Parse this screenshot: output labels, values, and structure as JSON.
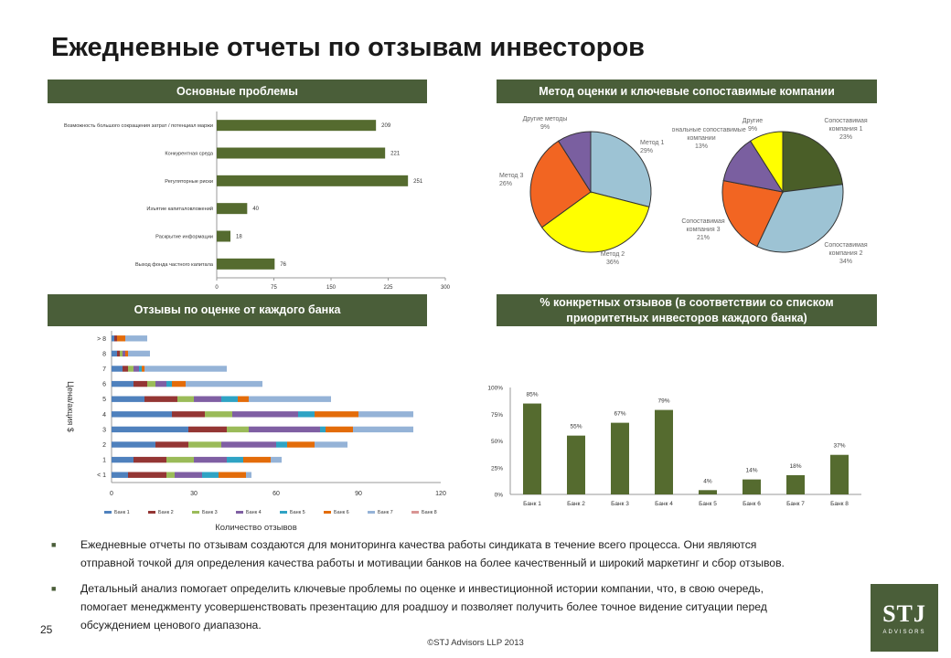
{
  "page": {
    "title": "Ежедневные отчеты по отзывам инвесторов",
    "page_number": "25",
    "copyright": "©STJ Advisors LLP 2013",
    "logo_text": "STJ",
    "logo_sub": "ADVISORS",
    "colors": {
      "accent": "#4a5e39",
      "bar": "#556b2f"
    }
  },
  "banners": {
    "problems": "Основные проблемы",
    "valuation": "Метод оценки и ключевые сопоставимые компании",
    "feedback": "Отзывы по оценке от каждого банка",
    "specific_line1": "% конкретных отзывов (в соответствии со списком",
    "specific_line2": "приоритетных инвесторов каждого банка)"
  },
  "bullets": [
    {
      "line1": "Ежедневные отчеты по отзывам создаются для мониторинга качества работы синдиката в течение всего процесса. Они являются",
      "line2": "отправной точкой для определения качества работы и мотивации банков на более качественный и широкий маркетинг и сбор отзывов."
    },
    {
      "line1": "Детальный анализ помогает определить ключевые проблемы по оценке и инвестиционной истории компании, что, в свою очередь,",
      "line2": "помогает менеджменту усовершенствовать презентацию для роадшоу и позволяет получить более точное видение ситуации перед",
      "line3": "обсуждением ценового диапазона."
    }
  ],
  "chart_data": [
    {
      "id": "problems",
      "type": "bar",
      "orientation": "horizontal",
      "categories": [
        "Возможность большого сокращения затрат / потенциал маржи",
        "Конкурентная среда",
        "Регуляторные риски",
        "Изъятие капиталовложений",
        "Раскрытие информации",
        "Выход фонда частного капитала"
      ],
      "values": [
        209,
        221,
        251,
        40,
        18,
        76
      ],
      "xlim": [
        0,
        300
      ],
      "xticks": [
        0,
        75,
        150,
        225,
        300
      ],
      "color": "#556b2f"
    },
    {
      "id": "method",
      "type": "pie",
      "slices": [
        {
          "label_line1": "Метод 1",
          "label_line2": "",
          "percent_label": "29%",
          "value": 29,
          "color": "#9dc3d4"
        },
        {
          "label_line1": "Метод 2",
          "label_line2": "",
          "percent_label": "36%",
          "value": 36,
          "color": "#ffff00"
        },
        {
          "label_line1": "Метод 3",
          "label_line2": "",
          "percent_label": "26%",
          "value": 26,
          "color": "#f26522"
        },
        {
          "label_line1": "Другие методы",
          "label_line2": "",
          "percent_label": "9%",
          "value": 9,
          "color": "#7a5fa0"
        }
      ]
    },
    {
      "id": "comparables",
      "type": "pie",
      "slices": [
        {
          "label_line1": "Сопоставимая",
          "label_line2": "компания 1",
          "percent_label": "23%",
          "value": 23,
          "color": "#4a5e28"
        },
        {
          "label_line1": "Сопоставимая",
          "label_line2": "компания 2",
          "percent_label": "34%",
          "value": 34,
          "color": "#9dc3d4"
        },
        {
          "label_line1": "Сопоставимая",
          "label_line2": "компания 3",
          "percent_label": "21%",
          "value": 21,
          "color": "#f26522"
        },
        {
          "label_line1": "Рациональные сопоставимые",
          "label_line2": "компании",
          "percent_label": "13%",
          "value": 13,
          "color": "#7a5fa0"
        },
        {
          "label_line1": "Другие",
          "label_line2": "",
          "percent_label": "9%",
          "value": 9,
          "color": "#ffff00"
        }
      ]
    },
    {
      "id": "feedback",
      "type": "bar",
      "orientation": "horizontal",
      "stacked": true,
      "ylabel": "Цена/акция $",
      "xlabel": "Количество отзывов",
      "categories": [
        "< 1",
        "1",
        "2",
        "3",
        "4",
        "5",
        "6",
        "7",
        "8",
        "> 8"
      ],
      "xlim": [
        0,
        120
      ],
      "xticks": [
        0,
        30,
        60,
        90,
        120
      ],
      "series": [
        {
          "name": "Банк 1",
          "color": "#4f81bd",
          "values": [
            6,
            8,
            16,
            28,
            22,
            12,
            8,
            4,
            2,
            1
          ]
        },
        {
          "name": "Банк 2",
          "color": "#943634",
          "values": [
            14,
            12,
            12,
            14,
            12,
            12,
            5,
            2,
            1,
            1
          ]
        },
        {
          "name": "Банк 3",
          "color": "#9bbb59",
          "values": [
            3,
            10,
            12,
            8,
            10,
            6,
            3,
            2,
            1,
            0
          ]
        },
        {
          "name": "Банк 4",
          "color": "#7f5fa3",
          "values": [
            10,
            12,
            20,
            26,
            24,
            10,
            4,
            2,
            1,
            0
          ]
        },
        {
          "name": "Банк 5",
          "color": "#2fa3c4",
          "values": [
            6,
            6,
            4,
            2,
            6,
            6,
            2,
            1,
            0,
            0
          ]
        },
        {
          "name": "Банк 6",
          "color": "#e36c0a",
          "values": [
            10,
            10,
            10,
            10,
            16,
            4,
            5,
            1,
            1,
            3
          ]
        },
        {
          "name": "Банк 7",
          "color": "#95b3d7",
          "values": [
            2,
            4,
            12,
            22,
            20,
            30,
            28,
            30,
            8,
            8
          ]
        },
        {
          "name": "Банк 8",
          "color": "#d99594",
          "values": [
            0,
            0,
            0,
            0,
            0,
            0,
            0,
            0,
            0,
            0
          ]
        }
      ]
    },
    {
      "id": "specific",
      "type": "bar",
      "categories": [
        "Банк 1",
        "Банк 2",
        "Банк 3",
        "Банк 4",
        "Банк 5",
        "Банк 6",
        "Банк 7",
        "Банк 8"
      ],
      "values": [
        85,
        55,
        67,
        79,
        4,
        14,
        18,
        37
      ],
      "data_labels": [
        "85%",
        "55%",
        "67%",
        "79%",
        "4%",
        "14%",
        "18%",
        "37%"
      ],
      "ylim": [
        0,
        100
      ],
      "yticks": [
        "0%",
        "25%",
        "50%",
        "75%",
        "100%"
      ],
      "color": "#556b2f"
    }
  ]
}
